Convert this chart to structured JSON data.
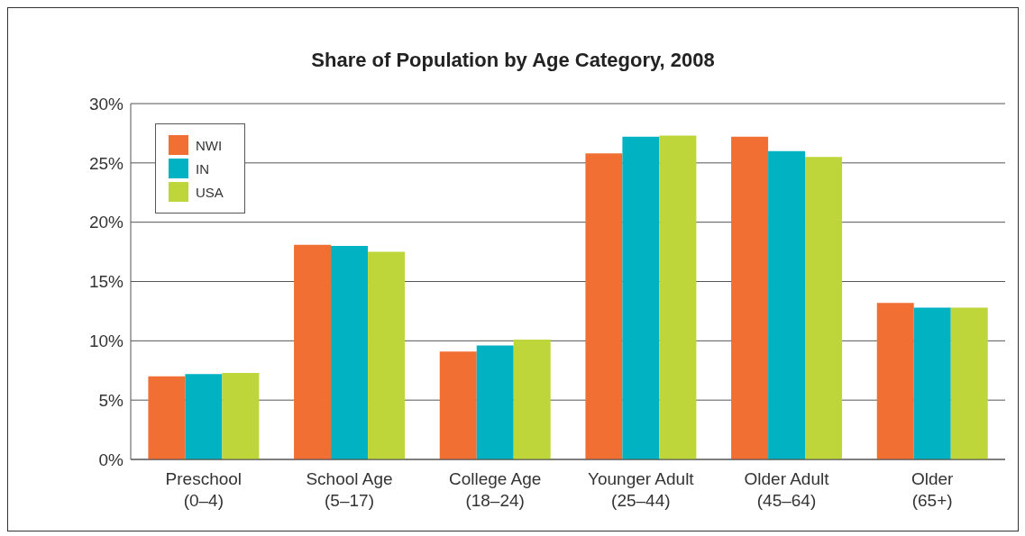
{
  "chart_data": {
    "type": "bar",
    "title": "Share of Population by Age Category, 2008",
    "categories": [
      "Preschool\n(0–4)",
      "School Age\n(5–17)",
      "College Age\n(18–24)",
      "Younger Adult\n(25–44)",
      "Older Adult\n(45–64)",
      "Older\n(65+)"
    ],
    "series": [
      {
        "name": "NWI",
        "color": "#f26f33",
        "values": [
          7.0,
          18.1,
          9.1,
          25.8,
          27.2,
          13.2
        ]
      },
      {
        "name": "IN",
        "color": "#00b2c2",
        "values": [
          7.2,
          18.0,
          9.6,
          27.2,
          26.0,
          12.8
        ]
      },
      {
        "name": "USA",
        "color": "#bed63a",
        "values": [
          7.3,
          17.5,
          10.1,
          27.3,
          25.5,
          12.8
        ]
      }
    ],
    "ylim": [
      0,
      30
    ],
    "yticks": [
      {
        "value": 0,
        "label": "0%"
      },
      {
        "value": 5,
        "label": "5%"
      },
      {
        "value": 10,
        "label": "10%"
      },
      {
        "value": 15,
        "label": "15%"
      },
      {
        "value": 20,
        "label": "20%"
      },
      {
        "value": 25,
        "label": "25%"
      },
      {
        "value": 30,
        "label": "30%"
      }
    ],
    "grid": "y",
    "legend": "top left"
  }
}
